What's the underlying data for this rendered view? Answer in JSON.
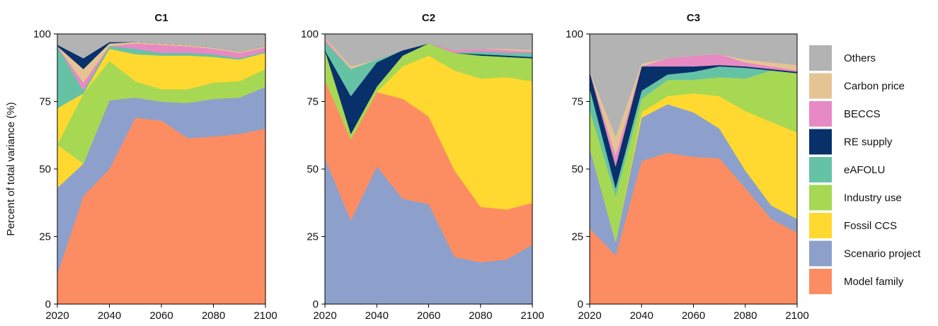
{
  "ylabel": "Percent of total variance (%)",
  "legend_placement": "right",
  "colors": {
    "Model family": "#fc8d62",
    "Scenario project": "#8da0cb",
    "Fossil CCS": "#ffd92f",
    "Industry use": "#a6d854",
    "eAFOLU": "#66c2a5",
    "RE supply": "#08306b",
    "BECCS": "#e78ac3",
    "Carbon price": "#e5c494",
    "Others": "#b3b3b3"
  },
  "chart_data": [
    {
      "type": "area",
      "stacked": true,
      "title": "C1",
      "x": [
        2020,
        2030,
        2040,
        2050,
        2060,
        2070,
        2080,
        2090,
        2100
      ],
      "xlim": [
        2020,
        2100
      ],
      "xticks": [
        "2020",
        "2040",
        "2060",
        "2080",
        "2100"
      ],
      "ylim": [
        0,
        100
      ],
      "yticks": [
        "0",
        "25",
        "50",
        "75",
        "100"
      ],
      "series": [
        {
          "name": "Model family",
          "values": [
            11,
            40,
            50,
            69,
            68,
            61.5,
            62,
            63,
            65
          ]
        },
        {
          "name": "Scenario project",
          "values": [
            32,
            12,
            25.5,
            7.5,
            7,
            13,
            14,
            13.5,
            15.5
          ]
        },
        {
          "name": "Fossil CCS",
          "values": [
            16,
            0,
            0,
            0,
            0,
            0,
            0,
            0,
            0
          ]
        },
        {
          "name": "Industry use",
          "values": [
            0,
            26,
            14.5,
            6,
            4.5,
            5,
            6,
            6,
            6.5
          ]
        },
        {
          "name": "Fossil CCS",
          "values": [
            13.5,
            0,
            4.5,
            10,
            12.5,
            12.5,
            9.5,
            8,
            6
          ]
        },
        {
          "name": "eAFOLU",
          "values": [
            23,
            1,
            1,
            2,
            1,
            1,
            1,
            0.5,
            0.5
          ]
        },
        {
          "name": "BECCS",
          "values": [
            0,
            3,
            0,
            2,
            3,
            2.5,
            2,
            2,
            1.5
          ]
        },
        {
          "name": "Carbon price",
          "values": [
            0,
            5,
            1,
            0.5,
            0.5,
            0.5,
            0.5,
            0.5,
            0.5
          ]
        },
        {
          "name": "RE supply",
          "values": [
            0.5,
            4,
            0.5,
            0,
            0,
            0,
            0,
            0,
            0
          ]
        },
        {
          "name": "Others",
          "values": [
            4,
            9,
            3,
            3,
            3.5,
            4,
            5,
            6.5,
            4.5
          ]
        }
      ]
    },
    {
      "type": "area",
      "stacked": true,
      "title": "C2",
      "x": [
        2020,
        2030,
        2040,
        2050,
        2060,
        2070,
        2080,
        2090,
        2100
      ],
      "xlim": [
        2020,
        2100
      ],
      "xticks": [
        "2020",
        "2040",
        "2060",
        "2080",
        "2100"
      ],
      "ylim": [
        0,
        100
      ],
      "yticks": [
        "0",
        "25",
        "50",
        "75",
        "100"
      ],
      "series": [
        {
          "name": "Scenario project",
          "values": [
            54,
            31,
            51,
            39,
            37,
            17.5,
            15.5,
            16.5,
            22
          ]
        },
        {
          "name": "Model family",
          "values": [
            29,
            30,
            27.5,
            37,
            32.5,
            32,
            20.5,
            18.5,
            15.5
          ]
        },
        {
          "name": "Fossil CCS",
          "values": [
            0,
            0,
            0,
            12,
            22.5,
            37,
            47.5,
            49,
            45
          ]
        },
        {
          "name": "Industry use",
          "values": [
            11,
            2,
            2,
            4,
            4.5,
            6.5,
            8.5,
            7.5,
            8.5
          ]
        },
        {
          "name": "RE supply",
          "values": [
            0,
            14,
            9,
            2,
            0,
            0,
            0.5,
            0.5,
            0.5
          ]
        },
        {
          "name": "eAFOLU",
          "values": [
            3,
            10,
            1,
            0,
            0,
            0,
            1,
            1,
            1.5
          ]
        },
        {
          "name": "BECCS",
          "values": [
            1,
            0,
            0,
            0,
            0,
            1,
            1,
            1,
            0.5
          ]
        },
        {
          "name": "Carbon price",
          "values": [
            0.5,
            1,
            0,
            0,
            0,
            0,
            0,
            0.5,
            0.5
          ]
        },
        {
          "name": "Others",
          "values": [
            1.5,
            12,
            9.5,
            6,
            3.5,
            6,
            5.5,
            5.5,
            6
          ]
        }
      ]
    },
    {
      "type": "area",
      "stacked": true,
      "title": "C3",
      "x": [
        2020,
        2030,
        2040,
        2050,
        2060,
        2070,
        2080,
        2090,
        2100
      ],
      "xlim": [
        2020,
        2100
      ],
      "xticks": [
        "2020",
        "2040",
        "2060",
        "2080",
        "2100"
      ],
      "ylim": [
        0,
        100
      ],
      "yticks": [
        "0",
        "25",
        "50",
        "75",
        "100"
      ],
      "series": [
        {
          "name": "Model family",
          "values": [
            28,
            18,
            53,
            56,
            54.5,
            54,
            43,
            31.5,
            26.5
          ]
        },
        {
          "name": "Scenario project",
          "values": [
            30,
            5,
            16,
            18,
            16.5,
            11,
            6.5,
            5,
            5
          ]
        },
        {
          "name": "Fossil CCS",
          "values": [
            0,
            0,
            2,
            3,
            7,
            12,
            22,
            31,
            32
          ]
        },
        {
          "name": "Industry use",
          "values": [
            14,
            17,
            5,
            6,
            5,
            7,
            12,
            19,
            22
          ]
        },
        {
          "name": "eAFOLU",
          "values": [
            8,
            3,
            3,
            2,
            3,
            4,
            4,
            0,
            0
          ]
        },
        {
          "name": "RE supply",
          "values": [
            6,
            8,
            9,
            3,
            2,
            0.5,
            0.5,
            0.5,
            0.5
          ]
        },
        {
          "name": "BECCS",
          "values": [
            0,
            4,
            0,
            3,
            4,
            4,
            1.5,
            1,
            0.5
          ]
        },
        {
          "name": "Carbon price",
          "values": [
            0,
            7,
            1,
            0,
            0,
            0,
            1,
            1.5,
            2
          ]
        },
        {
          "name": "Others",
          "values": [
            14,
            38,
            11,
            9,
            8,
            7.5,
            9.5,
            10.5,
            11.5
          ]
        }
      ]
    }
  ],
  "legend": [
    {
      "label": "Others",
      "color": "#b3b3b3"
    },
    {
      "label": "Carbon price",
      "color": "#e5c494"
    },
    {
      "label": "BECCS",
      "color": "#e78ac3"
    },
    {
      "label": "RE supply",
      "color": "#08306b"
    },
    {
      "label": "eAFOLU",
      "color": "#66c2a5"
    },
    {
      "label": "Industry use",
      "color": "#a6d854"
    },
    {
      "label": "Fossil CCS",
      "color": "#ffd92f"
    },
    {
      "label": "Scenario project",
      "color": "#8da0cb"
    },
    {
      "label": "Model family",
      "color": "#fc8d62"
    }
  ]
}
